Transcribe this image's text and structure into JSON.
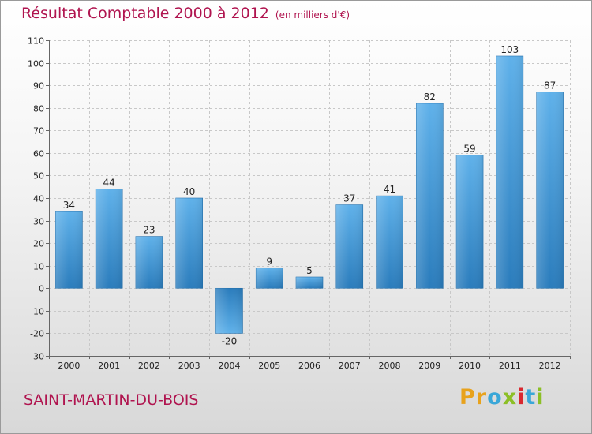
{
  "title": "Résultat Comptable 2000 à 2012",
  "subtitle": "(en milliers d'€)",
  "commune": "SAINT-MARTIN-DU-BOIS",
  "logo": {
    "letters": [
      "P",
      "r",
      "o",
      "x",
      "i",
      "t",
      "i"
    ],
    "colors": [
      "#e8a21c",
      "#e8a21c",
      "#3aa7d8",
      "#8cbf26",
      "#d9282f",
      "#3aa7d8",
      "#8cbf26"
    ]
  },
  "colors": {
    "title": "#b0144f",
    "bar_light": "#5fb1ea",
    "bar_dark": "#2a7cbc"
  },
  "chart_data": {
    "type": "bar",
    "title": "Résultat Comptable 2000 à 2012",
    "subtitle": "(en milliers d'€)",
    "xlabel": "",
    "ylabel": "",
    "categories": [
      "2000",
      "2001",
      "2002",
      "2003",
      "2004",
      "2005",
      "2006",
      "2007",
      "2008",
      "2009",
      "2010",
      "2011",
      "2012"
    ],
    "values": [
      34,
      44,
      23,
      40,
      -20,
      9,
      5,
      37,
      41,
      82,
      59,
      103,
      87
    ],
    "ylim": [
      -30,
      110
    ],
    "yticks": [
      -30,
      -20,
      -10,
      0,
      10,
      20,
      30,
      40,
      50,
      60,
      70,
      80,
      90,
      100,
      110
    ],
    "grid": true
  }
}
